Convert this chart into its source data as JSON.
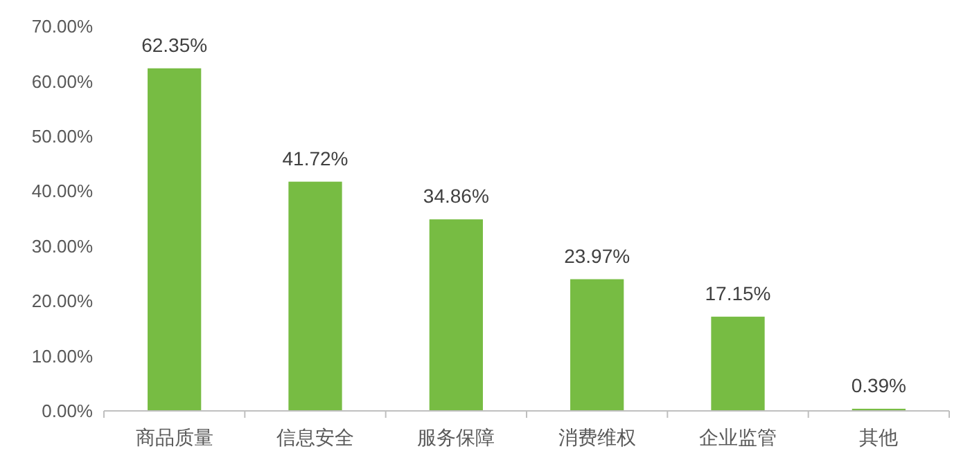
{
  "chart_data": {
    "type": "bar",
    "categories": [
      "商品质量",
      "信息安全",
      "服务保障",
      "消费维权",
      "企业监管",
      "其他"
    ],
    "values": [
      62.35,
      41.72,
      34.86,
      23.97,
      17.15,
      0.39
    ],
    "value_labels": [
      "62.35%",
      "41.72%",
      "34.86%",
      "23.97%",
      "17.15%",
      "0.39%"
    ],
    "color": "#77bc43",
    "ylim": [
      0,
      70
    ],
    "yticks": [
      {
        "value": 0,
        "label": "0.00%"
      },
      {
        "value": 10,
        "label": "10.00%"
      },
      {
        "value": 20,
        "label": "20.00%"
      },
      {
        "value": 30,
        "label": "30.00%"
      },
      {
        "value": 40,
        "label": "40.00%"
      },
      {
        "value": 50,
        "label": "50.00%"
      },
      {
        "value": 60,
        "label": "60.00%"
      },
      {
        "value": 70,
        "label": "70.00%"
      }
    ],
    "grid": false
  }
}
